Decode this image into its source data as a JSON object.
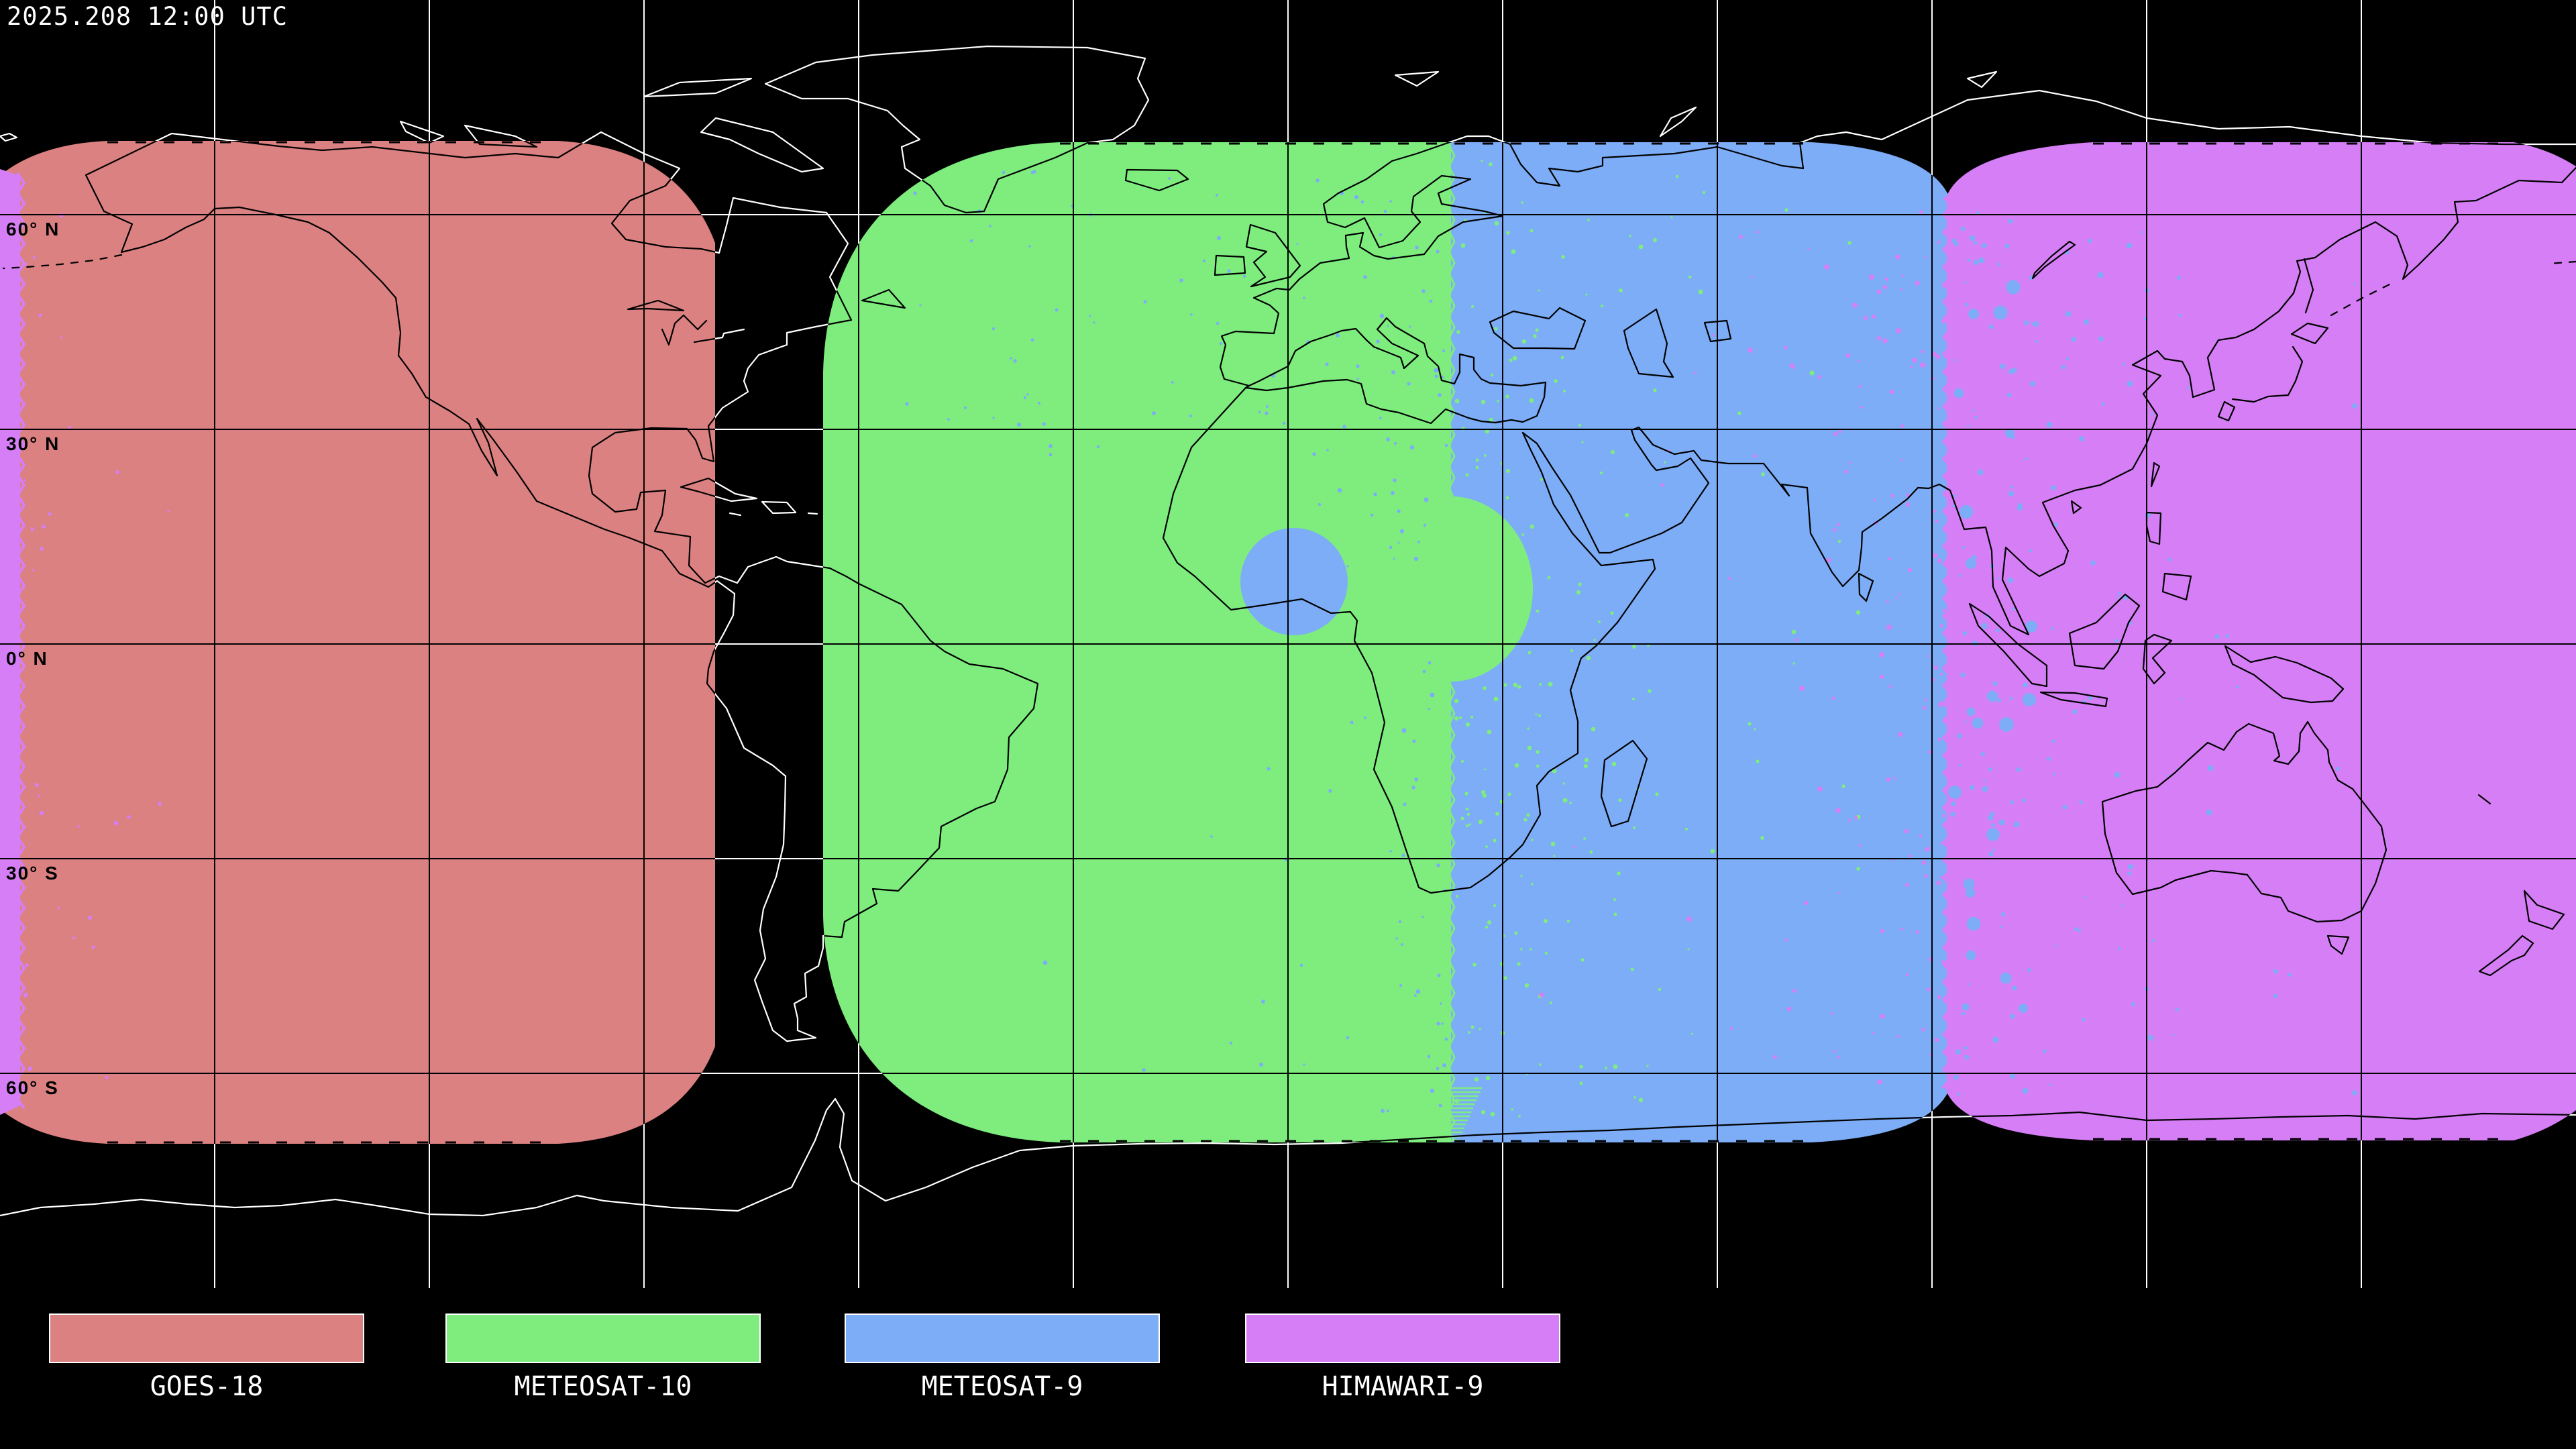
{
  "timestamp": "2025.208 12:00 UTC",
  "map": {
    "projection": "equirectangular world map",
    "latitude_labels": [
      {
        "text": "60° N"
      },
      {
        "text": "30° N"
      },
      {
        "text": "0° N"
      },
      {
        "text": "30° S"
      },
      {
        "text": "60° S"
      }
    ]
  },
  "legend": {
    "items": [
      {
        "label": "GOES-18",
        "color_key": "goes18"
      },
      {
        "label": "METEOSAT-10",
        "color_key": "meteosat10"
      },
      {
        "label": "METEOSAT-9",
        "color_key": "meteosat9"
      },
      {
        "label": "HIMAWARI-9",
        "color_key": "himawari9"
      }
    ]
  },
  "colors": {
    "background": "#000000",
    "graticule_ocean": "#ffffff",
    "graticule_coverage": "#000000",
    "coastline_ocean": "#ffffff",
    "coastline_coverage": "#000000",
    "goes18": "#dc8181",
    "meteosat10": "#7eed7e",
    "meteosat9": "#7cadf6",
    "himawari9": "#d57ef6"
  }
}
